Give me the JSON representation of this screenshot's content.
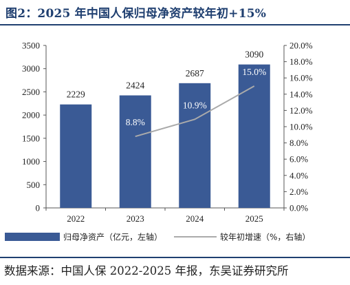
{
  "figure": {
    "title": "图2：2025 年中国人保归母净资产较年初+15%",
    "source": "数据来源：中国人保 2022-2025 年报，东吴证券研究所"
  },
  "colors": {
    "bar": "#3a5a95",
    "line": "#aaaaaa",
    "title": "#1f3f70",
    "label_in_bar": "#ffffff"
  },
  "chart_data": {
    "type": "bar",
    "categories": [
      "2022",
      "2023",
      "2024",
      "2025"
    ],
    "series": [
      {
        "name": "归母净资产（亿元，左轴）",
        "type": "bar",
        "axis": "left",
        "values": [
          2229,
          2424,
          2687,
          3090
        ],
        "labels": [
          "2229",
          "2424",
          "2687",
          "3090"
        ]
      },
      {
        "name": "较年初增速（%，右轴）",
        "type": "line",
        "axis": "right",
        "values": [
          null,
          8.8,
          10.9,
          15.0
        ],
        "labels": [
          "",
          "8.8%",
          "10.9%",
          "15.0%"
        ]
      }
    ],
    "y_left": {
      "range": [
        0,
        3500
      ],
      "ticks": [
        "0",
        "500",
        "1000",
        "1500",
        "2000",
        "2500",
        "3000",
        "3500"
      ]
    },
    "y_right": {
      "range": [
        0,
        20
      ],
      "ticks": [
        "0.0%",
        "2.0%",
        "4.0%",
        "6.0%",
        "8.0%",
        "10.0%",
        "12.0%",
        "14.0%",
        "16.0%",
        "18.0%",
        "20.0%"
      ]
    },
    "grid": false,
    "legend_position": "bottom"
  }
}
